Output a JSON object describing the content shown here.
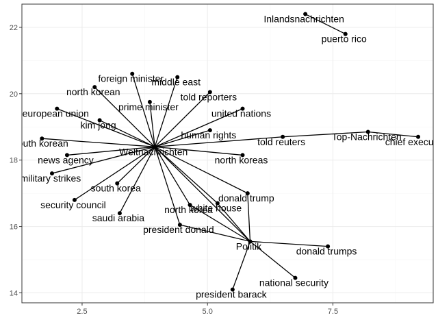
{
  "chart_data": {
    "type": "scatter",
    "title": "",
    "xlabel": "",
    "ylabel": "",
    "xlim": [
      1.3,
      9.5
    ],
    "ylim": [
      13.7,
      22.7
    ],
    "x_ticks": [
      2.5,
      5.0,
      7.5
    ],
    "x_tick_labels": [
      "2.5",
      "5.0",
      "7.5"
    ],
    "y_ticks": [
      14,
      16,
      18,
      20,
      22
    ],
    "y_tick_labels": [
      "14",
      "16",
      "18",
      "20",
      "22"
    ],
    "grid": true,
    "legend": "none",
    "nodes": [
      {
        "label": "Weltnachrichten",
        "x": 3.95,
        "y": 18.4,
        "label_dx": -2,
        "label_dy": 12
      },
      {
        "label": "Politik",
        "x": 5.85,
        "y": 15.55,
        "label_dx": -2,
        "label_dy": 12
      },
      {
        "label": "Inlandsnachrichten",
        "x": 6.95,
        "y": 22.4,
        "label_dx": -2,
        "label_dy": 12
      },
      {
        "label": "puerto rico",
        "x": 7.75,
        "y": 21.8,
        "label_dx": -2,
        "label_dy": 12
      },
      {
        "label": "Top-Nachrichten",
        "x": 8.2,
        "y": 18.85,
        "label_dx": -2,
        "label_dy": 12
      },
      {
        "label": "chief executive",
        "x": 9.2,
        "y": 18.7,
        "label_dx": -2,
        "label_dy": 12
      },
      {
        "label": "told reuters",
        "x": 6.5,
        "y": 18.7,
        "label_dx": -2,
        "label_dy": 12
      },
      {
        "label": "foreign minister",
        "x": 3.5,
        "y": 20.6,
        "label_dx": -2,
        "label_dy": 12
      },
      {
        "label": "middle east",
        "x": 4.4,
        "y": 20.5,
        "label_dx": -2,
        "label_dy": 12
      },
      {
        "label": "north korean",
        "x": 2.75,
        "y": 20.2,
        "label_dx": -2,
        "label_dy": 12
      },
      {
        "label": "told reporters",
        "x": 5.05,
        "y": 20.05,
        "label_dx": -2,
        "label_dy": 12
      },
      {
        "label": "prime minister",
        "x": 3.85,
        "y": 19.75,
        "label_dx": -2,
        "label_dy": 12
      },
      {
        "label": "european union",
        "x": 2.0,
        "y": 19.55,
        "label_dx": -2,
        "label_dy": 12
      },
      {
        "label": "united nations",
        "x": 5.7,
        "y": 19.55,
        "label_dx": -2,
        "label_dy": 12
      },
      {
        "label": "kim jong",
        "x": 2.85,
        "y": 19.2,
        "label_dx": -2,
        "label_dy": 12
      },
      {
        "label": "human rights",
        "x": 5.05,
        "y": 18.9,
        "label_dx": -2,
        "label_dy": 12
      },
      {
        "label": "south korean",
        "x": 1.7,
        "y": 18.65,
        "label_dx": -2,
        "label_dy": 12
      },
      {
        "label": "news agency",
        "x": 2.2,
        "y": 18.15,
        "label_dx": -2,
        "label_dy": 12
      },
      {
        "label": "north koreas",
        "x": 5.7,
        "y": 18.15,
        "label_dx": -2,
        "label_dy": 12
      },
      {
        "label": "military strikes",
        "x": 1.9,
        "y": 17.6,
        "label_dx": -2,
        "label_dy": 12
      },
      {
        "label": "south korea",
        "x": 3.2,
        "y": 17.3,
        "label_dx": -2,
        "label_dy": 12
      },
      {
        "label": "donald trump",
        "x": 5.8,
        "y": 17.0,
        "label_dx": -2,
        "label_dy": 12
      },
      {
        "label": "security council",
        "x": 2.35,
        "y": 16.8,
        "label_dx": -2,
        "label_dy": 12
      },
      {
        "label": "white house",
        "x": 5.2,
        "y": 16.7,
        "label_dx": -2,
        "label_dy": 12
      },
      {
        "label": "north korea",
        "x": 4.65,
        "y": 16.65,
        "label_dx": -2,
        "label_dy": 12
      },
      {
        "label": "saudi arabia",
        "x": 3.25,
        "y": 16.4,
        "label_dx": -2,
        "label_dy": 12
      },
      {
        "label": "president donald",
        "x": 4.45,
        "y": 16.05,
        "label_dx": -2,
        "label_dy": 12
      },
      {
        "label": "donald trumps",
        "x": 7.4,
        "y": 15.4,
        "label_dx": -2,
        "label_dy": 12
      },
      {
        "label": "national security",
        "x": 6.75,
        "y": 14.45,
        "label_dx": -2,
        "label_dy": 12
      },
      {
        "label": "president barack",
        "x": 5.5,
        "y": 14.1,
        "label_dx": -2,
        "label_dy": 12
      }
    ],
    "edges": [
      [
        "Weltnachrichten",
        "foreign minister"
      ],
      [
        "Weltnachrichten",
        "middle east"
      ],
      [
        "Weltnachrichten",
        "north korean"
      ],
      [
        "Weltnachrichten",
        "told reporters"
      ],
      [
        "Weltnachrichten",
        "prime minister"
      ],
      [
        "Weltnachrichten",
        "european union"
      ],
      [
        "Weltnachrichten",
        "united nations"
      ],
      [
        "Weltnachrichten",
        "kim jong"
      ],
      [
        "Weltnachrichten",
        "human rights"
      ],
      [
        "Weltnachrichten",
        "south korean"
      ],
      [
        "Weltnachrichten",
        "news agency"
      ],
      [
        "Weltnachrichten",
        "north koreas"
      ],
      [
        "Weltnachrichten",
        "military strikes"
      ],
      [
        "Weltnachrichten",
        "south korea"
      ],
      [
        "Weltnachrichten",
        "security council"
      ],
      [
        "Weltnachrichten",
        "saudi arabia"
      ],
      [
        "Weltnachrichten",
        "told reuters"
      ],
      [
        "Weltnachrichten",
        "donald trump"
      ],
      [
        "Weltnachrichten",
        "white house"
      ],
      [
        "Weltnachrichten",
        "north korea"
      ],
      [
        "Weltnachrichten",
        "president donald"
      ],
      [
        "Weltnachrichten",
        "Politik"
      ],
      [
        "Politik",
        "donald trump"
      ],
      [
        "Politik",
        "white house"
      ],
      [
        "Politik",
        "north korea"
      ],
      [
        "Politik",
        "president donald"
      ],
      [
        "Politik",
        "donald trumps"
      ],
      [
        "Politik",
        "national security"
      ],
      [
        "Politik",
        "president barack"
      ],
      [
        "Inlandsnachrichten",
        "puerto rico"
      ],
      [
        "Top-Nachrichten",
        "told reuters"
      ],
      [
        "Top-Nachrichten",
        "chief executive"
      ]
    ]
  }
}
